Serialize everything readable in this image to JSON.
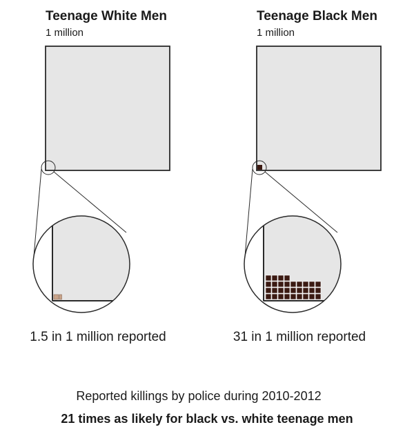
{
  "chart_data": [
    {
      "type": "unit-chart",
      "title": "Teenage White Men",
      "subtitle": "1 million",
      "population": 1000000,
      "reported_killings_per_million": 1.5,
      "caption": "1.5 in 1 million reported",
      "unit_color": "#c9a48a",
      "unit_border": "#8a6a55"
    },
    {
      "type": "unit-chart",
      "title": "Teenage Black Men",
      "subtitle": "1 million",
      "population": 1000000,
      "reported_killings_per_million": 31,
      "caption": "31 in 1 million reported",
      "unit_color": "#3b1a12",
      "unit_border": "#ffffff"
    }
  ],
  "footer": {
    "line1": "Reported killings by police during 2010-2012",
    "line2": "21 times as likely for black vs. white teenage men"
  },
  "colors": {
    "population_fill": "#e6e6e6",
    "outline": "#2a2a2a"
  }
}
